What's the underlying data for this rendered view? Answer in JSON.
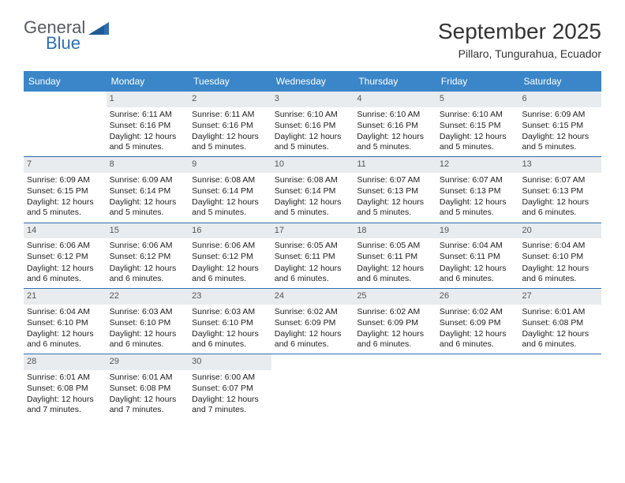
{
  "logo": {
    "word1": "General",
    "word2": "Blue"
  },
  "title": "September 2025",
  "subtitle": "Pillaro, Tungurahua, Ecuador",
  "colors": {
    "header_bg": "#3a86c8",
    "header_text": "#ffffff",
    "daynum_bg": "#e9ecef",
    "daynum_text": "#555555",
    "border": "#2f6fb0",
    "logo_gray": "#555a60",
    "logo_blue": "#2f6fb0",
    "body_text": "#222222",
    "page_bg": "#ffffff"
  },
  "dayHeaders": [
    "Sunday",
    "Monday",
    "Tuesday",
    "Wednesday",
    "Thursday",
    "Friday",
    "Saturday"
  ],
  "weeks": [
    [
      {
        "empty": true
      },
      {
        "day": "1",
        "sunrise": "Sunrise: 6:11 AM",
        "sunset": "Sunset: 6:16 PM",
        "daylight": "Daylight: 12 hours and 5 minutes."
      },
      {
        "day": "2",
        "sunrise": "Sunrise: 6:11 AM",
        "sunset": "Sunset: 6:16 PM",
        "daylight": "Daylight: 12 hours and 5 minutes."
      },
      {
        "day": "3",
        "sunrise": "Sunrise: 6:10 AM",
        "sunset": "Sunset: 6:16 PM",
        "daylight": "Daylight: 12 hours and 5 minutes."
      },
      {
        "day": "4",
        "sunrise": "Sunrise: 6:10 AM",
        "sunset": "Sunset: 6:16 PM",
        "daylight": "Daylight: 12 hours and 5 minutes."
      },
      {
        "day": "5",
        "sunrise": "Sunrise: 6:10 AM",
        "sunset": "Sunset: 6:15 PM",
        "daylight": "Daylight: 12 hours and 5 minutes."
      },
      {
        "day": "6",
        "sunrise": "Sunrise: 6:09 AM",
        "sunset": "Sunset: 6:15 PM",
        "daylight": "Daylight: 12 hours and 5 minutes."
      }
    ],
    [
      {
        "day": "7",
        "sunrise": "Sunrise: 6:09 AM",
        "sunset": "Sunset: 6:15 PM",
        "daylight": "Daylight: 12 hours and 5 minutes."
      },
      {
        "day": "8",
        "sunrise": "Sunrise: 6:09 AM",
        "sunset": "Sunset: 6:14 PM",
        "daylight": "Daylight: 12 hours and 5 minutes."
      },
      {
        "day": "9",
        "sunrise": "Sunrise: 6:08 AM",
        "sunset": "Sunset: 6:14 PM",
        "daylight": "Daylight: 12 hours and 5 minutes."
      },
      {
        "day": "10",
        "sunrise": "Sunrise: 6:08 AM",
        "sunset": "Sunset: 6:14 PM",
        "daylight": "Daylight: 12 hours and 5 minutes."
      },
      {
        "day": "11",
        "sunrise": "Sunrise: 6:07 AM",
        "sunset": "Sunset: 6:13 PM",
        "daylight": "Daylight: 12 hours and 5 minutes."
      },
      {
        "day": "12",
        "sunrise": "Sunrise: 6:07 AM",
        "sunset": "Sunset: 6:13 PM",
        "daylight": "Daylight: 12 hours and 5 minutes."
      },
      {
        "day": "13",
        "sunrise": "Sunrise: 6:07 AM",
        "sunset": "Sunset: 6:13 PM",
        "daylight": "Daylight: 12 hours and 6 minutes."
      }
    ],
    [
      {
        "day": "14",
        "sunrise": "Sunrise: 6:06 AM",
        "sunset": "Sunset: 6:12 PM",
        "daylight": "Daylight: 12 hours and 6 minutes."
      },
      {
        "day": "15",
        "sunrise": "Sunrise: 6:06 AM",
        "sunset": "Sunset: 6:12 PM",
        "daylight": "Daylight: 12 hours and 6 minutes."
      },
      {
        "day": "16",
        "sunrise": "Sunrise: 6:06 AM",
        "sunset": "Sunset: 6:12 PM",
        "daylight": "Daylight: 12 hours and 6 minutes."
      },
      {
        "day": "17",
        "sunrise": "Sunrise: 6:05 AM",
        "sunset": "Sunset: 6:11 PM",
        "daylight": "Daylight: 12 hours and 6 minutes."
      },
      {
        "day": "18",
        "sunrise": "Sunrise: 6:05 AM",
        "sunset": "Sunset: 6:11 PM",
        "daylight": "Daylight: 12 hours and 6 minutes."
      },
      {
        "day": "19",
        "sunrise": "Sunrise: 6:04 AM",
        "sunset": "Sunset: 6:11 PM",
        "daylight": "Daylight: 12 hours and 6 minutes."
      },
      {
        "day": "20",
        "sunrise": "Sunrise: 6:04 AM",
        "sunset": "Sunset: 6:10 PM",
        "daylight": "Daylight: 12 hours and 6 minutes."
      }
    ],
    [
      {
        "day": "21",
        "sunrise": "Sunrise: 6:04 AM",
        "sunset": "Sunset: 6:10 PM",
        "daylight": "Daylight: 12 hours and 6 minutes."
      },
      {
        "day": "22",
        "sunrise": "Sunrise: 6:03 AM",
        "sunset": "Sunset: 6:10 PM",
        "daylight": "Daylight: 12 hours and 6 minutes."
      },
      {
        "day": "23",
        "sunrise": "Sunrise: 6:03 AM",
        "sunset": "Sunset: 6:10 PM",
        "daylight": "Daylight: 12 hours and 6 minutes."
      },
      {
        "day": "24",
        "sunrise": "Sunrise: 6:02 AM",
        "sunset": "Sunset: 6:09 PM",
        "daylight": "Daylight: 12 hours and 6 minutes."
      },
      {
        "day": "25",
        "sunrise": "Sunrise: 6:02 AM",
        "sunset": "Sunset: 6:09 PM",
        "daylight": "Daylight: 12 hours and 6 minutes."
      },
      {
        "day": "26",
        "sunrise": "Sunrise: 6:02 AM",
        "sunset": "Sunset: 6:09 PM",
        "daylight": "Daylight: 12 hours and 6 minutes."
      },
      {
        "day": "27",
        "sunrise": "Sunrise: 6:01 AM",
        "sunset": "Sunset: 6:08 PM",
        "daylight": "Daylight: 12 hours and 6 minutes."
      }
    ],
    [
      {
        "day": "28",
        "sunrise": "Sunrise: 6:01 AM",
        "sunset": "Sunset: 6:08 PM",
        "daylight": "Daylight: 12 hours and 7 minutes."
      },
      {
        "day": "29",
        "sunrise": "Sunrise: 6:01 AM",
        "sunset": "Sunset: 6:08 PM",
        "daylight": "Daylight: 12 hours and 7 minutes."
      },
      {
        "day": "30",
        "sunrise": "Sunrise: 6:00 AM",
        "sunset": "Sunset: 6:07 PM",
        "daylight": "Daylight: 12 hours and 7 minutes."
      },
      {
        "empty": true
      },
      {
        "empty": true
      },
      {
        "empty": true
      },
      {
        "empty": true
      }
    ]
  ]
}
